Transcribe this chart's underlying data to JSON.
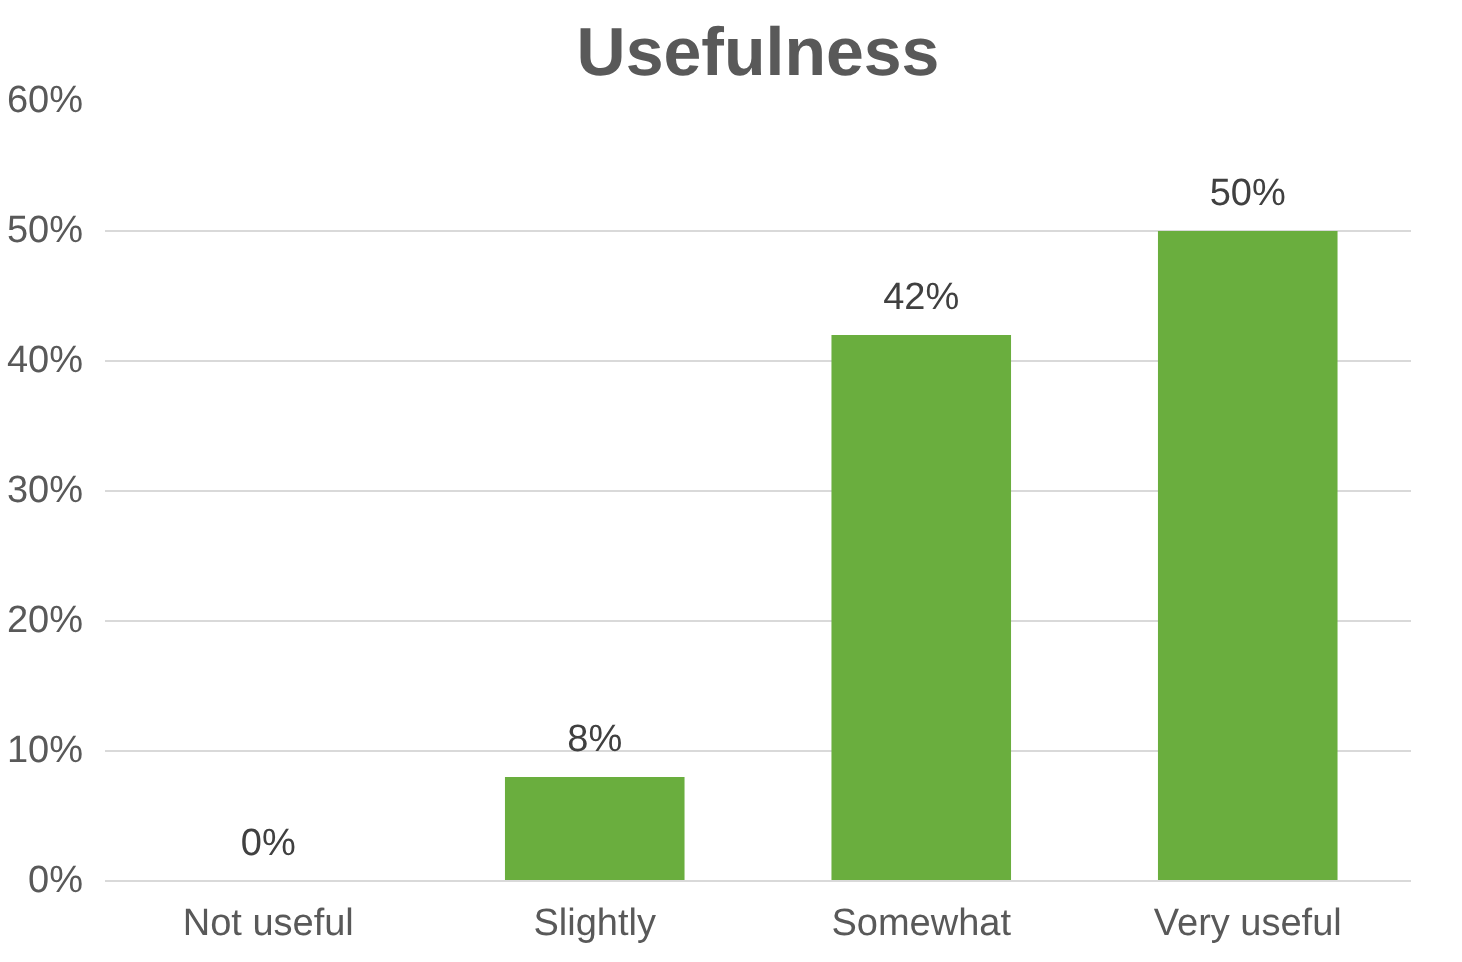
{
  "chart_data": {
    "type": "bar",
    "title": "Usefulness",
    "categories": [
      "Not useful",
      "Slightly",
      "Somewhat",
      "Very useful"
    ],
    "values": [
      0,
      8,
      42,
      50
    ],
    "value_labels": [
      "0%",
      "8%",
      "42%",
      "50%"
    ],
    "color": "#6aae3e",
    "ylim": [
      0,
      60
    ],
    "yticks": [
      {
        "value": 0,
        "label": "0%"
      },
      {
        "value": 10,
        "label": "10%"
      },
      {
        "value": 20,
        "label": "20%"
      },
      {
        "value": 30,
        "label": "30%"
      },
      {
        "value": 40,
        "label": "40%"
      },
      {
        "value": 50,
        "label": "50%"
      },
      {
        "value": 60,
        "label": "60%"
      }
    ],
    "grid": "y"
  }
}
